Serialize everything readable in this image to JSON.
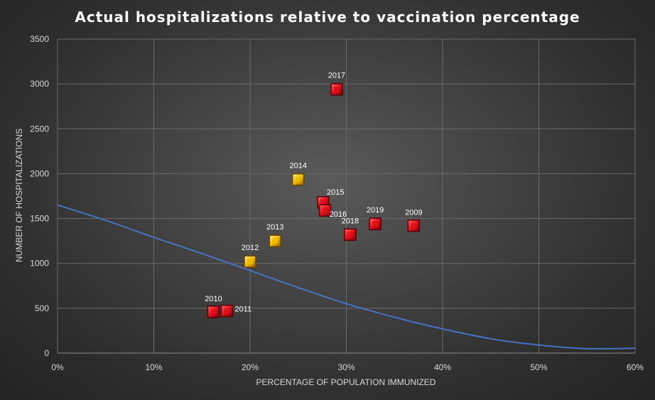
{
  "chart_data": {
    "type": "scatter",
    "title": "Actual hospitalizations relative to vaccination percentage",
    "xlabel": "PERCENTAGE OF POPULATION IMMUNIZED",
    "ylabel": "NUMBER OF HOSPITALIZATIONS",
    "xlim": [
      0,
      60
    ],
    "ylim": [
      0,
      3500
    ],
    "x_ticks": [
      "0%",
      "10%",
      "20%",
      "30%",
      "40%",
      "50%",
      "60%"
    ],
    "y_ticks": [
      "0",
      "500",
      "1000",
      "1500",
      "2000",
      "2500",
      "3000",
      "3500"
    ],
    "grid": true,
    "colors": {
      "red_marker": "#e0101a",
      "yellow_marker": "#f2b800",
      "trend_line": "#4472c4"
    },
    "points": [
      {
        "label": "2009",
        "x": 37.0,
        "y": 1420,
        "color": "red"
      },
      {
        "label": "2010",
        "x": 16.2,
        "y": 460,
        "color": "red"
      },
      {
        "label": "2011",
        "x": 17.6,
        "y": 470,
        "color": "red"
      },
      {
        "label": "2012",
        "x": 20.0,
        "y": 1020,
        "color": "yellow"
      },
      {
        "label": "2013",
        "x": 22.6,
        "y": 1250,
        "color": "yellow"
      },
      {
        "label": "2014",
        "x": 25.0,
        "y": 1935,
        "color": "yellow"
      },
      {
        "label": "2015",
        "x": 27.6,
        "y": 1680,
        "color": "red"
      },
      {
        "label": "2016",
        "x": 27.8,
        "y": 1590,
        "color": "red"
      },
      {
        "label": "2017",
        "x": 29.0,
        "y": 2940,
        "color": "red"
      },
      {
        "label": "2018",
        "x": 30.4,
        "y": 1320,
        "color": "red"
      },
      {
        "label": "2019",
        "x": 33.0,
        "y": 1440,
        "color": "red"
      }
    ],
    "trend_line": {
      "x": [
        0,
        5,
        10,
        15,
        20,
        25,
        30,
        35,
        40,
        45,
        50,
        55,
        60
      ],
      "y": [
        1650,
        1480,
        1290,
        1110,
        920,
        730,
        550,
        400,
        270,
        160,
        90,
        50,
        55
      ]
    }
  }
}
